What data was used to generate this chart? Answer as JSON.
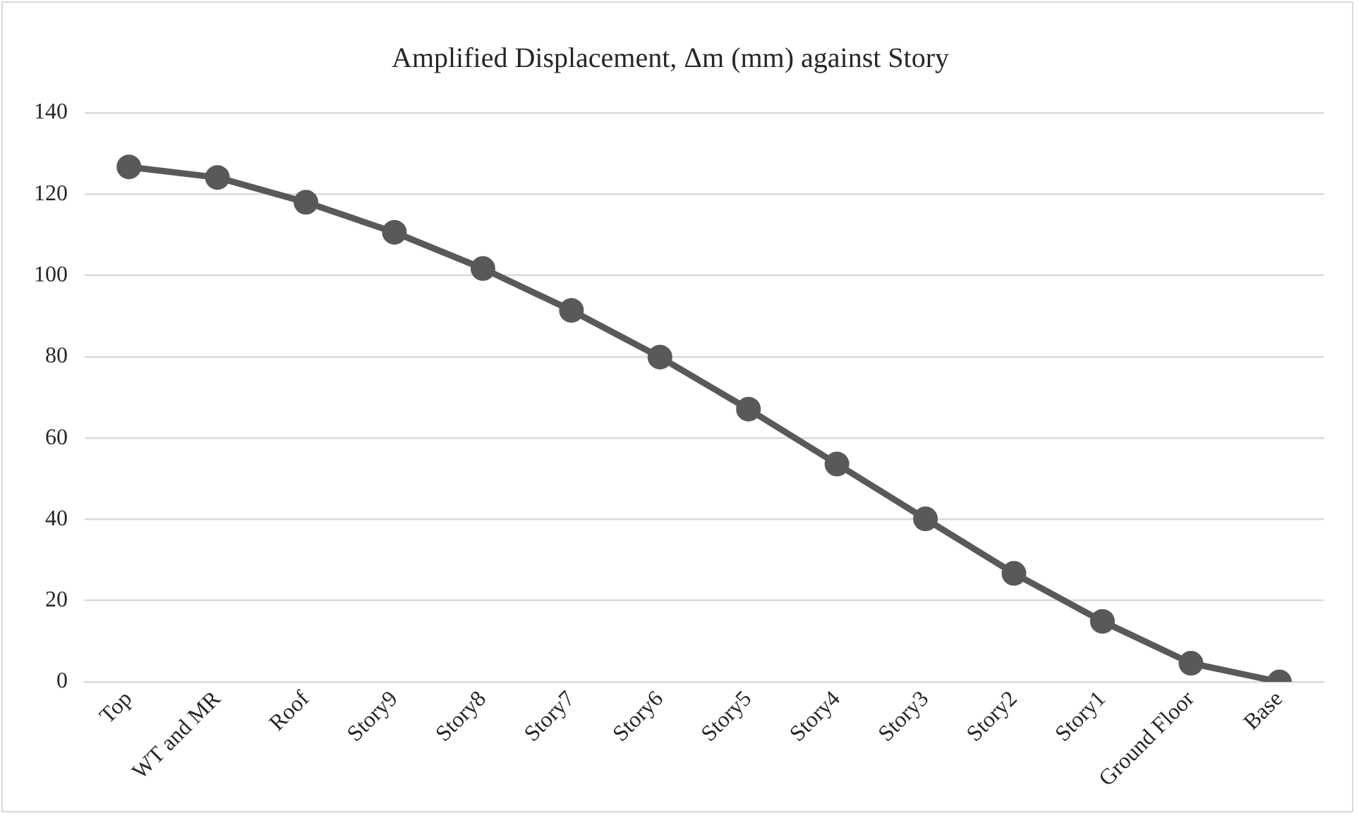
{
  "chart_data": {
    "type": "line",
    "title": "Amplified Displacement, Δm (mm) against Story",
    "categories": [
      "Top",
      "WT and MR",
      "Roof",
      "Story9",
      "Story8",
      "Story7",
      "Story6",
      "Story5",
      "Story4",
      "Story3",
      "Story2",
      "Story1",
      "Ground Floor",
      "Base"
    ],
    "series": [
      {
        "color": "#595959",
        "values": [
          126.7,
          124.1,
          118,
          110.6,
          101.7,
          91.4,
          79.9,
          67.1,
          53.6,
          40.1,
          26.7,
          14.9,
          4.6,
          0
        ]
      }
    ],
    "ylim": [
      0,
      140
    ],
    "yticks": [
      0,
      20,
      40,
      60,
      80,
      100,
      120,
      140
    ],
    "grid": "y",
    "legend": false,
    "marker": "circle",
    "line_style": "solid"
  }
}
